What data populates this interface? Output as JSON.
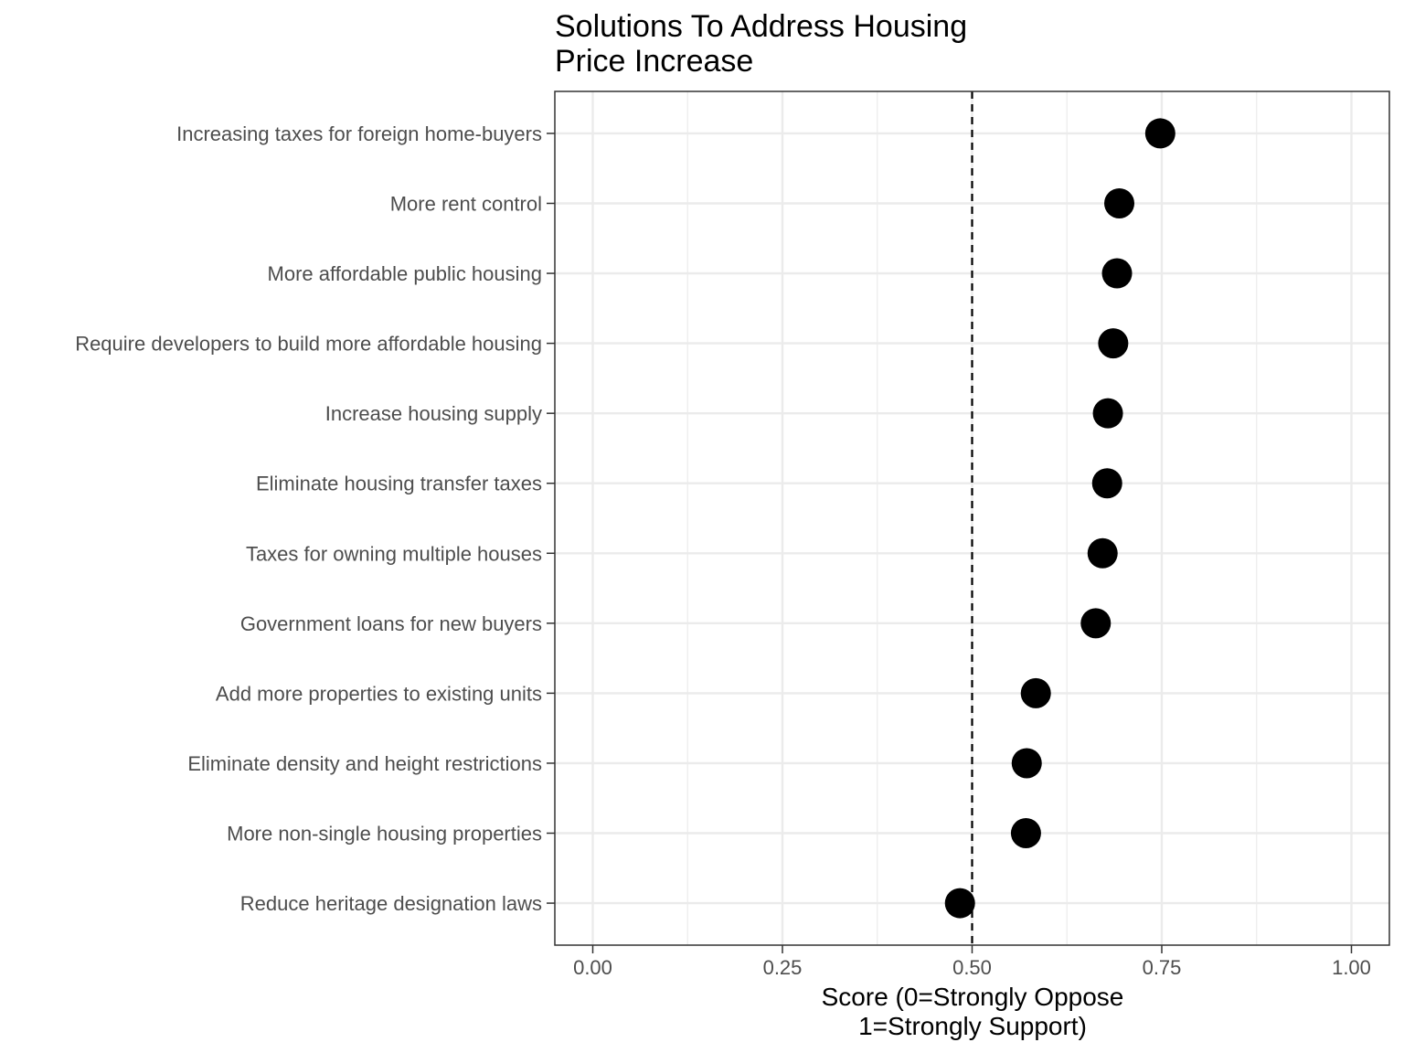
{
  "chart_data": {
    "type": "scatter",
    "title": [
      "Solutions To Address Housing",
      "Price Increase"
    ],
    "xlabel": [
      "Score (0=Strongly Oppose",
      "1=Strongly Support)"
    ],
    "ylabel": "",
    "xlim": [
      -0.05,
      1.05
    ],
    "x_ticks": [
      {
        "value": 0.0,
        "label": "0.00"
      },
      {
        "value": 0.25,
        "label": "0.25"
      },
      {
        "value": 0.5,
        "label": "0.50"
      },
      {
        "value": 0.75,
        "label": "0.75"
      },
      {
        "value": 1.0,
        "label": "1.00"
      }
    ],
    "minor_x_ticks": [
      0.125,
      0.375,
      0.625,
      0.875
    ],
    "reference_line": {
      "value": 0.5,
      "style": "dashed"
    },
    "grid": true,
    "categories": [
      "Increasing taxes for foreign home-buyers",
      "More rent control",
      "More affordable public housing",
      "Require developers to build more affordable housing",
      "Increase housing supply",
      "Eliminate housing transfer taxes",
      "Taxes for owning multiple houses",
      "Government loans for new buyers",
      "Add more properties to existing units",
      "Eliminate density and height restrictions",
      "More non-single housing properties",
      "Reduce heritage designation laws"
    ],
    "values": [
      0.748,
      0.694,
      0.691,
      0.686,
      0.679,
      0.678,
      0.672,
      0.663,
      0.584,
      0.572,
      0.571,
      0.484
    ],
    "colors": {
      "point": "#000000",
      "grid": "#ebebeb",
      "panel_border": "#333333",
      "label": "#4d4d4d"
    }
  }
}
